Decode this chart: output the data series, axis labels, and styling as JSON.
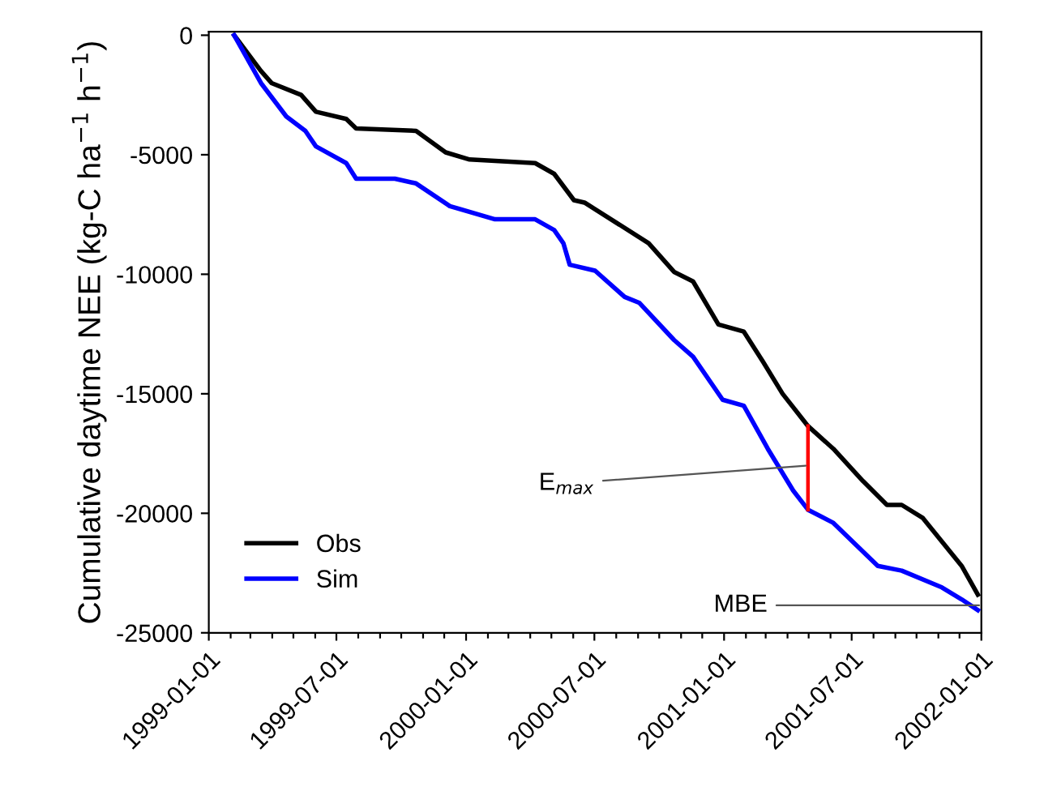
{
  "chart_data": {
    "type": "line",
    "ylabel": "Cumulative daytime NEE (kg-C ha$^{−1}$ h$^{−1}$)",
    "xlim": [
      "1999-01-01",
      "2002-01-01"
    ],
    "xticks": [
      {
        "value": "1999-01-01",
        "label": "1999-01-01"
      },
      {
        "value": "1999-02-01",
        "label": null
      },
      {
        "value": "1999-03-01",
        "label": null
      },
      {
        "value": "1999-04-01",
        "label": null
      },
      {
        "value": "1999-05-01",
        "label": null
      },
      {
        "value": "1999-06-01",
        "label": null
      },
      {
        "value": "1999-07-01",
        "label": "1999-07-01"
      },
      {
        "value": "1999-08-01",
        "label": null
      },
      {
        "value": "1999-09-01",
        "label": null
      },
      {
        "value": "1999-10-01",
        "label": null
      },
      {
        "value": "1999-11-01",
        "label": null
      },
      {
        "value": "1999-12-01",
        "label": null
      },
      {
        "value": "2000-01-01",
        "label": "2000-01-01"
      },
      {
        "value": "2000-02-01",
        "label": null
      },
      {
        "value": "2000-03-01",
        "label": null
      },
      {
        "value": "2000-04-01",
        "label": null
      },
      {
        "value": "2000-05-01",
        "label": null
      },
      {
        "value": "2000-06-01",
        "label": null
      },
      {
        "value": "2000-07-01",
        "label": "2000-07-01"
      },
      {
        "value": "2000-08-01",
        "label": null
      },
      {
        "value": "2000-09-01",
        "label": null
      },
      {
        "value": "2000-10-01",
        "label": null
      },
      {
        "value": "2000-11-01",
        "label": null
      },
      {
        "value": "2000-12-01",
        "label": null
      },
      {
        "value": "2001-01-01",
        "label": "2001-01-01"
      },
      {
        "value": "2001-02-01",
        "label": null
      },
      {
        "value": "2001-03-01",
        "label": null
      },
      {
        "value": "2001-04-01",
        "label": null
      },
      {
        "value": "2001-05-01",
        "label": null
      },
      {
        "value": "2001-06-01",
        "label": null
      },
      {
        "value": "2001-07-01",
        "label": "2001-07-01"
      },
      {
        "value": "2001-08-01",
        "label": null
      },
      {
        "value": "2001-09-01",
        "label": null
      },
      {
        "value": "2001-10-01",
        "label": null
      },
      {
        "value": "2001-11-01",
        "label": null
      },
      {
        "value": "2001-12-01",
        "label": null
      },
      {
        "value": "2002-01-01",
        "label": "2002-01-01"
      }
    ],
    "ylim": [
      -25000,
      150
    ],
    "yticks": [
      -25000,
      -20000,
      -15000,
      -10000,
      -5000,
      0
    ],
    "legend": "bottom left",
    "grid": false,
    "series": [
      {
        "name": "Obs",
        "color": "#000000",
        "x": [
          "1999-02-06",
          "1999-03-16",
          "1999-03-31",
          "1999-05-12",
          "1999-06-02",
          "1999-07-15",
          "1999-07-29",
          "1999-10-22",
          "1999-12-03",
          "2000-01-06",
          "2000-04-08",
          "2000-05-05",
          "2000-06-02",
          "2000-06-17",
          "2000-09-16",
          "2000-10-22",
          "2000-11-18",
          "2000-12-24",
          "2001-01-29",
          "2001-02-25",
          "2001-03-25",
          "2001-04-30",
          "2001-06-05",
          "2001-07-17",
          "2001-08-20",
          "2001-09-10",
          "2001-10-10",
          "2001-12-04",
          "2001-12-27"
        ],
        "values": [
          0,
          -1500,
          -2000,
          -2500,
          -3200,
          -3500,
          -3900,
          -4000,
          -4900,
          -5200,
          -5350,
          -5800,
          -6900,
          -7000,
          -8700,
          -9900,
          -10300,
          -12100,
          -12400,
          -13650,
          -15000,
          -16350,
          -17300,
          -18650,
          -19650,
          -19650,
          -20200,
          -22200,
          -23400
        ]
      },
      {
        "name": "Sim",
        "color": "#0000ff",
        "x": [
          "1999-02-06",
          "1999-03-16",
          "1999-04-21",
          "1999-05-18",
          "1999-06-02",
          "1999-07-15",
          "1999-07-29",
          "1999-09-22",
          "1999-10-22",
          "1999-12-09",
          "2000-02-11",
          "2000-04-08",
          "2000-05-05",
          "2000-05-18",
          "2000-05-27",
          "2000-07-02",
          "2000-08-13",
          "2000-09-03",
          "2000-10-22",
          "2000-11-18",
          "2000-12-30",
          "2001-01-29",
          "2001-03-04",
          "2001-04-09",
          "2001-04-30",
          "2001-06-05",
          "2001-08-07",
          "2001-09-10",
          "2001-11-06",
          "2001-12-04",
          "2001-12-27"
        ],
        "values": [
          0,
          -2000,
          -3400,
          -4000,
          -4650,
          -5350,
          -6000,
          -6000,
          -6200,
          -7150,
          -7700,
          -7700,
          -8150,
          -8700,
          -9600,
          -9850,
          -10950,
          -11200,
          -12750,
          -13450,
          -15250,
          -15500,
          -17300,
          -19050,
          -19850,
          -20400,
          -22200,
          -22400,
          -23100,
          -23600,
          -24050
        ]
      },
      {
        "color": "#ff0000",
        "x": [
          "2001-04-30",
          "2001-04-30"
        ],
        "values": [
          -16350,
          -19850
        ]
      }
    ],
    "annotations": [
      {
        "text": "E$_{max}$",
        "x": "2001-04-30",
        "y": -18000
      },
      {
        "text": "MBE",
        "x": "2002-01-01",
        "y": -23850
      }
    ]
  }
}
